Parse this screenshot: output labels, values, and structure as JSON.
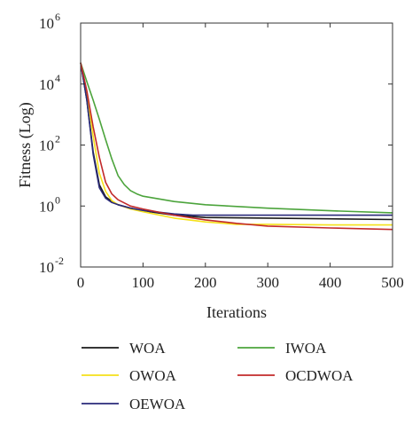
{
  "chart_data": {
    "type": "line",
    "title": "",
    "xlabel": "Iterations",
    "ylabel": "Fitness (Log)",
    "xlim": [
      0,
      500
    ],
    "ylim": [
      0.01,
      1000000
    ],
    "yscale": "log",
    "grid": false,
    "legend_position": "bottom",
    "x_ticks": [
      0,
      100,
      200,
      300,
      400,
      500
    ],
    "x_tick_labels": [
      "0",
      "100",
      "200",
      "300",
      "400",
      "500"
    ],
    "y_ticks": [
      0.01,
      1,
      100,
      10000,
      1000000
    ],
    "y_tick_labels": [
      {
        "base": "10",
        "exp": "-2"
      },
      {
        "base": "10",
        "exp": "0"
      },
      {
        "base": "10",
        "exp": "2"
      },
      {
        "base": "10",
        "exp": "4"
      },
      {
        "base": "10",
        "exp": "6"
      }
    ],
    "series": [
      {
        "name": "WOA",
        "color": "#1a1a1a",
        "x": [
          0,
          10,
          20,
          30,
          40,
          50,
          60,
          80,
          100,
          150,
          200,
          300,
          400,
          500
        ],
        "y": [
          50000,
          3000,
          60,
          5,
          2,
          1.4,
          1.1,
          0.85,
          0.7,
          0.5,
          0.42,
          0.4,
          0.38,
          0.36
        ]
      },
      {
        "name": "OWOA",
        "color": "#f5e11a",
        "x": [
          0,
          10,
          20,
          30,
          40,
          50,
          60,
          80,
          100,
          150,
          200,
          250,
          300,
          400,
          500
        ],
        "y": [
          50000,
          5000,
          200,
          12,
          3,
          1.5,
          1.1,
          0.8,
          0.65,
          0.4,
          0.3,
          0.25,
          0.25,
          0.24,
          0.24
        ]
      },
      {
        "name": "OEWOA",
        "color": "#2a2a7a",
        "x": [
          0,
          10,
          20,
          30,
          40,
          50,
          60,
          80,
          100,
          150,
          180,
          300,
          400,
          500
        ],
        "y": [
          50000,
          3000,
          50,
          4,
          1.8,
          1.3,
          1.1,
          0.85,
          0.72,
          0.55,
          0.5,
          0.5,
          0.5,
          0.5
        ]
      },
      {
        "name": "IWOA",
        "color": "#4ca43c",
        "x": [
          0,
          10,
          20,
          30,
          40,
          50,
          60,
          70,
          80,
          90,
          100,
          150,
          200,
          300,
          400,
          500
        ],
        "y": [
          50000,
          12000,
          3000,
          700,
          150,
          35,
          10,
          5,
          3.2,
          2.5,
          2.1,
          1.4,
          1.1,
          0.85,
          0.7,
          0.6
        ]
      },
      {
        "name": "OCDWOA",
        "color": "#c22a2a",
        "x": [
          0,
          10,
          20,
          30,
          40,
          50,
          60,
          80,
          100,
          150,
          200,
          250,
          300,
          400,
          500
        ],
        "y": [
          50000,
          6000,
          400,
          40,
          6,
          2.5,
          1.6,
          1.0,
          0.8,
          0.5,
          0.35,
          0.27,
          0.22,
          0.19,
          0.17
        ]
      }
    ],
    "legend_entries": [
      {
        "label": "WOA",
        "color": "#1a1a1a"
      },
      {
        "label": "IWOA",
        "color": "#4ca43c"
      },
      {
        "label": "OWOA",
        "color": "#f5e11a"
      },
      {
        "label": "OCDWOA",
        "color": "#c22a2a"
      },
      {
        "label": "OEWOA",
        "color": "#2a2a7a"
      }
    ]
  }
}
